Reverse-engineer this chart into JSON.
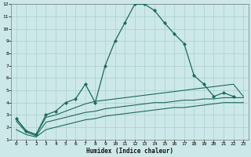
{
  "xlabel": "Humidex (Indice chaleur)",
  "background_color": "#cde8e8",
  "grid_color": "#aacfcf",
  "line_color": "#1a6b5a",
  "xlim": [
    -0.5,
    23.5
  ],
  "ylim": [
    1,
    12
  ],
  "xticks": [
    0,
    1,
    2,
    3,
    4,
    5,
    6,
    7,
    8,
    9,
    10,
    11,
    12,
    13,
    14,
    15,
    16,
    17,
    18,
    19,
    20,
    21,
    22,
    23
  ],
  "yticks": [
    1,
    2,
    3,
    4,
    5,
    6,
    7,
    8,
    9,
    10,
    11,
    12
  ],
  "line1_x": [
    0,
    1,
    2,
    3,
    4,
    5,
    6,
    7,
    8,
    9,
    10,
    11,
    12,
    13,
    14,
    15,
    16,
    17,
    18,
    19,
    20,
    21,
    22
  ],
  "line1_y": [
    2.7,
    1.7,
    1.4,
    3.0,
    3.3,
    4.0,
    4.3,
    5.5,
    4.0,
    7.0,
    9.0,
    10.5,
    12.0,
    12.0,
    11.5,
    10.5,
    9.6,
    8.8,
    6.2,
    5.5,
    4.5,
    4.8,
    4.5
  ],
  "line2_x": [
    0,
    1,
    2,
    3,
    4,
    5,
    6,
    7,
    8,
    9,
    10,
    11,
    12,
    13,
    14,
    15,
    16,
    17,
    18,
    19,
    20,
    21,
    22,
    23
  ],
  "line2_y": [
    2.7,
    1.7,
    1.4,
    2.8,
    3.0,
    3.3,
    3.6,
    3.9,
    4.1,
    4.2,
    4.3,
    4.4,
    4.5,
    4.6,
    4.7,
    4.8,
    4.9,
    5.0,
    5.1,
    5.2,
    5.3,
    5.4,
    5.5,
    4.5
  ],
  "line3_x": [
    0,
    1,
    2,
    3,
    4,
    5,
    6,
    7,
    8,
    9,
    10,
    11,
    12,
    13,
    14,
    15,
    16,
    17,
    18,
    19,
    20,
    21,
    22,
    23
  ],
  "line3_y": [
    2.5,
    1.6,
    1.3,
    2.4,
    2.6,
    2.8,
    3.0,
    3.2,
    3.3,
    3.5,
    3.6,
    3.7,
    3.8,
    3.9,
    4.0,
    4.0,
    4.1,
    4.2,
    4.2,
    4.3,
    4.3,
    4.4,
    4.4,
    4.4
  ],
  "line4_x": [
    0,
    1,
    2,
    3,
    4,
    5,
    6,
    7,
    8,
    9,
    10,
    11,
    12,
    13,
    14,
    15,
    16,
    17,
    18,
    19,
    20,
    21,
    22,
    23
  ],
  "line4_y": [
    1.8,
    1.4,
    1.2,
    1.8,
    2.0,
    2.2,
    2.4,
    2.6,
    2.7,
    2.9,
    3.0,
    3.1,
    3.2,
    3.3,
    3.4,
    3.5,
    3.6,
    3.6,
    3.7,
    3.8,
    3.9,
    4.0,
    4.0,
    4.0
  ]
}
